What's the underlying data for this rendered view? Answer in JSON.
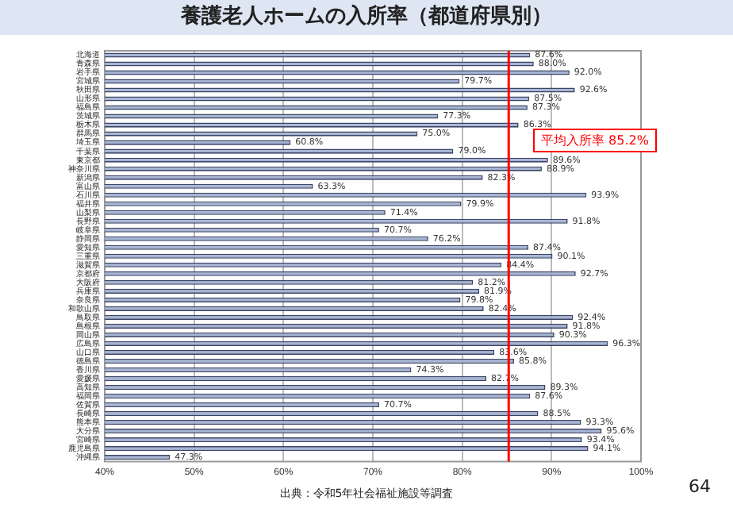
{
  "chart_data": {
    "type": "bar",
    "orientation": "horizontal",
    "title": "養護老人ホームの入所率（都道府県別）",
    "categories": [
      "北海道",
      "青森県",
      "岩手県",
      "宮城県",
      "秋田県",
      "山形県",
      "福島県",
      "茨城県",
      "栃木県",
      "群馬県",
      "埼玉県",
      "千葉県",
      "東京都",
      "神奈川県",
      "新潟県",
      "富山県",
      "石川県",
      "福井県",
      "山梨県",
      "長野県",
      "岐阜県",
      "静岡県",
      "愛知県",
      "三重県",
      "滋賀県",
      "京都府",
      "大阪府",
      "兵庫県",
      "奈良県",
      "和歌山県",
      "鳥取県",
      "島根県",
      "岡山県",
      "広島県",
      "山口県",
      "徳島県",
      "香川県",
      "愛媛県",
      "高知県",
      "福岡県",
      "佐賀県",
      "長崎県",
      "熊本県",
      "大分県",
      "宮崎県",
      "鹿児島県",
      "沖縄県"
    ],
    "values": [
      87.6,
      88.0,
      92.0,
      79.7,
      92.6,
      87.5,
      87.3,
      77.3,
      86.3,
      75.0,
      60.8,
      79.0,
      89.6,
      88.9,
      82.3,
      63.3,
      93.9,
      79.9,
      71.4,
      91.8,
      70.7,
      76.2,
      87.4,
      90.1,
      84.4,
      92.7,
      81.2,
      81.9,
      79.8,
      82.4,
      92.4,
      91.8,
      90.3,
      96.3,
      83.6,
      85.8,
      74.3,
      82.7,
      89.3,
      87.6,
      70.7,
      88.5,
      93.3,
      95.6,
      93.4,
      94.1,
      47.3
    ],
    "value_labels": [
      "87.6%",
      "88.0%",
      "92.0%",
      "79.7%",
      "92.6%",
      "87.5%",
      "87.3%",
      "77.3%",
      "86.3%",
      "75.0%",
      "60.8%",
      "79.0%",
      "89.6%",
      "88.9%",
      "82.3%",
      "63.3%",
      "93.9%",
      "79.9%",
      "71.4%",
      "91.8%",
      "70.7%",
      "76.2%",
      "87.4%",
      "90.1%",
      "84.4%",
      "92.7%",
      "81.2%",
      "81.9%",
      "79.8%",
      "82.4%",
      "92.4%",
      "91.8%",
      "90.3%",
      "96.3%",
      "83.6%",
      "85.8%",
      "74.3%",
      "82.7%",
      "89.3%",
      "87.6%",
      "70.7%",
      "88.5%",
      "93.3%",
      "95.6%",
      "93.4%",
      "94.1%",
      "47.3%"
    ],
    "color": "#a6b4d4",
    "xlim": [
      40,
      100
    ],
    "xticks": [
      {
        "value": 40,
        "label": "40%"
      },
      {
        "value": 50,
        "label": "50%"
      },
      {
        "value": 60,
        "label": "60%"
      },
      {
        "value": 70,
        "label": "70%"
      },
      {
        "value": 80,
        "label": "80%"
      },
      {
        "value": 90,
        "label": "90%"
      },
      {
        "value": 100,
        "label": "100%"
      }
    ],
    "grid": "x",
    "legend": false,
    "ref_lines": [
      {
        "axis": "x",
        "value": 85.2,
        "label": "平均入所率 85.2%",
        "color": "#ff0000"
      }
    ],
    "annotations": [
      "出典：令和5年社会福祉施設等調査",
      "64"
    ]
  }
}
